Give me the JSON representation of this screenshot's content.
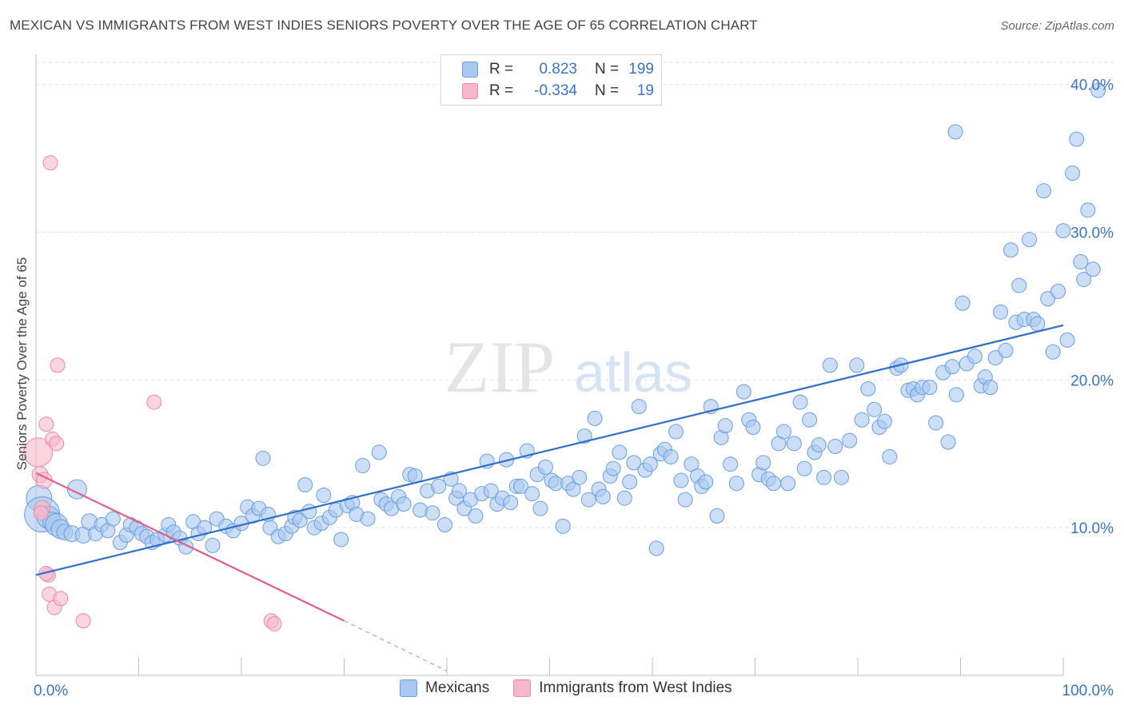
{
  "title": "MEXICAN VS IMMIGRANTS FROM WEST INDIES SENIORS POVERTY OVER THE AGE OF 65 CORRELATION CHART",
  "source": "Source: ZipAtlas.com",
  "watermark": {
    "zip": "ZIP",
    "atlas": "atlas"
  },
  "legend": {
    "rows": [
      {
        "r_label": "R =",
        "r_value": "0.823",
        "n_label": "N =",
        "n_value": "199",
        "color": "#a9c8f0"
      },
      {
        "r_label": "R =",
        "r_value": "-0.334",
        "n_label": "N =",
        "n_value": "19",
        "color": "#f7b8ca"
      }
    ]
  },
  "bottom_legend": [
    {
      "label": "Mexicans",
      "color": "#a9c8f0"
    },
    {
      "label": "Immigrants from West Indies",
      "color": "#f7b8ca"
    }
  ],
  "colors": {
    "blue_fill": "#a9c8f0",
    "blue_stroke": "#6a9ee0",
    "blue_line": "#2f6fcb",
    "pink_fill": "#f7b8ca",
    "pink_stroke": "#ea8aa6",
    "pink_line": "#e0608c",
    "axis_text": "#3a74c4",
    "grid": "#e2e2e2"
  },
  "chart_data": {
    "type": "scatter",
    "title": "MEXICAN VS IMMIGRANTS FROM WEST INDIES SENIORS POVERTY OVER THE AGE OF 65 CORRELATION CHART",
    "xlabel": "",
    "ylabel": "Seniors Poverty Over the Age of 65",
    "xlim": [
      0,
      100
    ],
    "ylim": [
      0,
      41.5
    ],
    "x_tick_labels": [
      {
        "value": 0,
        "label": "0.0%"
      },
      {
        "value": 100,
        "label": "100.0%"
      }
    ],
    "y_tick_labels": [
      {
        "value": 10,
        "label": "10.0%"
      },
      {
        "value": 20,
        "label": "20.0%"
      },
      {
        "value": 30,
        "label": "30.0%"
      },
      {
        "value": 40,
        "label": "40.0%"
      }
    ],
    "series": [
      {
        "name": "Mexicans",
        "trendline": {
          "x0": 0,
          "y0": 6.8,
          "x1": 100,
          "y1": 23.7
        },
        "points": [
          [
            0.3,
            12.0,
            16
          ],
          [
            0.6,
            10.9,
            22
          ],
          [
            1.2,
            10.7,
            14
          ],
          [
            1.6,
            10.4,
            12
          ],
          [
            2.0,
            10.2,
            14
          ],
          [
            2.4,
            9.9,
            12
          ],
          [
            2.8,
            9.7,
            10
          ],
          [
            3.5,
            9.6,
            10
          ],
          [
            4.0,
            12.6,
            12
          ],
          [
            4.6,
            9.5,
            10
          ],
          [
            5.2,
            10.4,
            10
          ],
          [
            5.8,
            9.6,
            9
          ],
          [
            6.4,
            10.2,
            9
          ],
          [
            7.0,
            9.8,
            9
          ],
          [
            7.5,
            10.6,
            9
          ],
          [
            8.2,
            9.0,
            9
          ],
          [
            8.8,
            9.5,
            9
          ],
          [
            9.2,
            10.2,
            9
          ],
          [
            9.8,
            10.0,
            9
          ],
          [
            10.3,
            9.6,
            9
          ],
          [
            10.8,
            9.4,
            9
          ],
          [
            11.3,
            9.0,
            9
          ],
          [
            11.8,
            9.2,
            9
          ],
          [
            12.6,
            9.5,
            9
          ],
          [
            12.9,
            10.2,
            9
          ],
          [
            13.4,
            9.7,
            9
          ],
          [
            14.0,
            9.3,
            9
          ],
          [
            14.6,
            8.7,
            9
          ],
          [
            15.3,
            10.4,
            9
          ],
          [
            15.8,
            9.6,
            9
          ],
          [
            16.4,
            10.0,
            9
          ],
          [
            17.2,
            8.8,
            9
          ],
          [
            17.6,
            10.6,
            9
          ],
          [
            18.5,
            10.1,
            9
          ],
          [
            19.2,
            9.8,
            9
          ],
          [
            20.0,
            10.3,
            9
          ],
          [
            20.6,
            11.4,
            9
          ],
          [
            21.1,
            10.8,
            9
          ],
          [
            21.7,
            11.3,
            9
          ],
          [
            22.1,
            14.7,
            9
          ],
          [
            22.6,
            10.9,
            9
          ],
          [
            22.8,
            10.0,
            9
          ],
          [
            23.6,
            9.4,
            9
          ],
          [
            24.3,
            9.6,
            9
          ],
          [
            24.9,
            10.1,
            9
          ],
          [
            25.2,
            10.7,
            9
          ],
          [
            25.7,
            10.5,
            9
          ],
          [
            26.2,
            12.9,
            9
          ],
          [
            26.6,
            11.1,
            9
          ],
          [
            27.1,
            10.0,
            9
          ],
          [
            27.8,
            10.3,
            9
          ],
          [
            28.0,
            12.2,
            9
          ],
          [
            28.6,
            10.7,
            9
          ],
          [
            29.2,
            11.2,
            9
          ],
          [
            29.7,
            9.2,
            9
          ],
          [
            30.3,
            11.5,
            9
          ],
          [
            30.8,
            11.7,
            9
          ],
          [
            31.2,
            10.9,
            9
          ],
          [
            31.8,
            14.2,
            9
          ],
          [
            32.3,
            10.6,
            9
          ],
          [
            33.4,
            15.1,
            9
          ],
          [
            33.6,
            11.9,
            9
          ],
          [
            34.1,
            11.6,
            9
          ],
          [
            34.6,
            11.3,
            9
          ],
          [
            35.3,
            12.1,
            9
          ],
          [
            35.8,
            11.6,
            9
          ],
          [
            36.4,
            13.6,
            9
          ],
          [
            36.9,
            13.5,
            9
          ],
          [
            37.4,
            11.2,
            9
          ],
          [
            38.1,
            12.5,
            9
          ],
          [
            38.6,
            11.0,
            9
          ],
          [
            39.2,
            12.8,
            9
          ],
          [
            39.8,
            10.2,
            9
          ],
          [
            40.4,
            13.3,
            9
          ],
          [
            40.9,
            12.0,
            9
          ],
          [
            41.2,
            12.5,
            9
          ],
          [
            41.7,
            11.3,
            9
          ],
          [
            42.3,
            11.9,
            9
          ],
          [
            42.8,
            10.8,
            9
          ],
          [
            43.4,
            12.3,
            9
          ],
          [
            43.9,
            14.5,
            9
          ],
          [
            44.3,
            12.5,
            9
          ],
          [
            44.9,
            11.6,
            9
          ],
          [
            45.4,
            12.0,
            9
          ],
          [
            45.8,
            14.6,
            9
          ],
          [
            46.2,
            11.7,
            9
          ],
          [
            46.8,
            12.8,
            9
          ],
          [
            47.2,
            12.8,
            9
          ],
          [
            47.8,
            15.2,
            9
          ],
          [
            48.3,
            12.3,
            9
          ],
          [
            48.8,
            13.6,
            9
          ],
          [
            49.1,
            11.3,
            9
          ],
          [
            49.6,
            14.1,
            9
          ],
          [
            50.2,
            13.2,
            9
          ],
          [
            50.6,
            13.0,
            9
          ],
          [
            51.3,
            10.1,
            9
          ],
          [
            51.8,
            13.0,
            9
          ],
          [
            52.3,
            12.6,
            9
          ],
          [
            52.9,
            13.4,
            9
          ],
          [
            53.4,
            16.2,
            9
          ],
          [
            53.8,
            11.9,
            9
          ],
          [
            54.4,
            17.4,
            9
          ],
          [
            54.8,
            12.6,
            9
          ],
          [
            55.2,
            12.1,
            9
          ],
          [
            55.9,
            13.5,
            9
          ],
          [
            56.2,
            14.0,
            9
          ],
          [
            56.8,
            15.1,
            9
          ],
          [
            57.3,
            12.0,
            9
          ],
          [
            57.8,
            13.1,
            9
          ],
          [
            58.2,
            14.4,
            9
          ],
          [
            58.7,
            18.2,
            9
          ],
          [
            59.3,
            13.9,
            9
          ],
          [
            59.8,
            14.3,
            9
          ],
          [
            60.4,
            8.6,
            9
          ],
          [
            60.8,
            15.0,
            9
          ],
          [
            61.2,
            15.3,
            9
          ],
          [
            61.8,
            14.8,
            9
          ],
          [
            62.3,
            16.5,
            9
          ],
          [
            62.8,
            13.2,
            9
          ],
          [
            63.2,
            11.9,
            9
          ],
          [
            63.8,
            14.3,
            9
          ],
          [
            64.4,
            13.5,
            9
          ],
          [
            64.8,
            12.8,
            9
          ],
          [
            65.2,
            13.1,
            9
          ],
          [
            65.7,
            18.2,
            9
          ],
          [
            66.3,
            10.8,
            9
          ],
          [
            66.7,
            16.1,
            9
          ],
          [
            67.1,
            16.9,
            9
          ],
          [
            67.6,
            14.3,
            9
          ],
          [
            68.2,
            13.0,
            9
          ],
          [
            68.9,
            19.2,
            9
          ],
          [
            69.4,
            17.3,
            9
          ],
          [
            69.8,
            16.8,
            9
          ],
          [
            70.4,
            13.6,
            9
          ],
          [
            70.8,
            14.4,
            9
          ],
          [
            71.3,
            13.3,
            9
          ],
          [
            71.8,
            13.0,
            9
          ],
          [
            72.3,
            15.7,
            9
          ],
          [
            72.8,
            16.5,
            9
          ],
          [
            73.2,
            13.0,
            9
          ],
          [
            73.8,
            15.7,
            9
          ],
          [
            74.4,
            18.5,
            9
          ],
          [
            74.8,
            14.0,
            9
          ],
          [
            75.3,
            17.3,
            9
          ],
          [
            75.8,
            15.1,
            9
          ],
          [
            76.2,
            15.6,
            9
          ],
          [
            76.7,
            13.4,
            9
          ],
          [
            77.3,
            21.0,
            9
          ],
          [
            77.8,
            15.5,
            9
          ],
          [
            78.4,
            13.4,
            9
          ],
          [
            79.2,
            15.9,
            9
          ],
          [
            79.9,
            21.0,
            9
          ],
          [
            80.4,
            17.3,
            9
          ],
          [
            81.0,
            19.4,
            9
          ],
          [
            81.6,
            18.0,
            9
          ],
          [
            82.1,
            16.8,
            9
          ],
          [
            82.6,
            17.2,
            9
          ],
          [
            83.1,
            14.8,
            9
          ],
          [
            83.8,
            20.8,
            9
          ],
          [
            84.2,
            21.0,
            9
          ],
          [
            84.9,
            19.3,
            9
          ],
          [
            85.4,
            19.4,
            9
          ],
          [
            85.8,
            19.0,
            9
          ],
          [
            86.3,
            19.5,
            9
          ],
          [
            87.0,
            19.5,
            9
          ],
          [
            87.6,
            17.1,
            9
          ],
          [
            88.3,
            20.5,
            9
          ],
          [
            88.8,
            15.8,
            9
          ],
          [
            89.2,
            20.9,
            9
          ],
          [
            89.6,
            19.0,
            9
          ],
          [
            90.2,
            25.2,
            9
          ],
          [
            90.6,
            21.1,
            9
          ],
          [
            91.4,
            21.6,
            9
          ],
          [
            92.0,
            19.6,
            9
          ],
          [
            92.4,
            20.2,
            9
          ],
          [
            92.9,
            19.5,
            9
          ],
          [
            93.4,
            21.5,
            9
          ],
          [
            93.9,
            24.6,
            9
          ],
          [
            94.4,
            22.0,
            9
          ],
          [
            94.9,
            28.8,
            9
          ],
          [
            95.4,
            23.9,
            9
          ],
          [
            95.7,
            26.4,
            9
          ],
          [
            96.2,
            24.1,
            9
          ],
          [
            96.7,
            29.5,
            9
          ],
          [
            97.1,
            24.1,
            9
          ],
          [
            97.5,
            23.8,
            9
          ],
          [
            98.1,
            32.8,
            9
          ],
          [
            98.5,
            25.5,
            9
          ],
          [
            99.0,
            21.9,
            9
          ],
          [
            99.5,
            26.0,
            9
          ],
          [
            100.0,
            30.1,
            9
          ],
          [
            100.4,
            22.7,
            9
          ],
          [
            100.9,
            34.0,
            9
          ],
          [
            101.3,
            36.3,
            9
          ],
          [
            101.7,
            28.0,
            9
          ],
          [
            102.0,
            26.8,
            9
          ],
          [
            102.4,
            31.5,
            9
          ],
          [
            102.9,
            27.5,
            9
          ],
          [
            103.4,
            39.6,
            9
          ],
          [
            89.5,
            36.8,
            9
          ]
        ]
      },
      {
        "name": "Immigrants from West Indies",
        "trendline": {
          "x0": 0,
          "y0": 13.7,
          "x1": 30,
          "y1": 3.7,
          "dashed_to_x": 40,
          "dashed_to_y": 0.3
        },
        "points": [
          [
            0.2,
            15.1,
            18
          ],
          [
            0.4,
            13.6,
            10
          ],
          [
            0.8,
            13.2,
            10
          ],
          [
            0.6,
            11.3,
            10
          ],
          [
            1.0,
            17.0,
            9
          ],
          [
            1.2,
            6.8,
            9
          ],
          [
            1.3,
            5.5,
            9
          ],
          [
            1.6,
            16.0,
            9
          ],
          [
            1.4,
            34.7,
            9
          ],
          [
            1.8,
            4.6,
            9
          ],
          [
            2.0,
            15.7,
            9
          ],
          [
            2.1,
            21.0,
            9
          ],
          [
            2.4,
            5.2,
            9
          ],
          [
            4.6,
            3.7,
            9
          ],
          [
            11.5,
            18.5,
            9
          ],
          [
            22.9,
            3.7,
            9
          ],
          [
            23.2,
            3.5,
            9
          ],
          [
            1.0,
            6.9,
            9
          ],
          [
            0.5,
            11.0,
            9
          ]
        ]
      }
    ]
  }
}
